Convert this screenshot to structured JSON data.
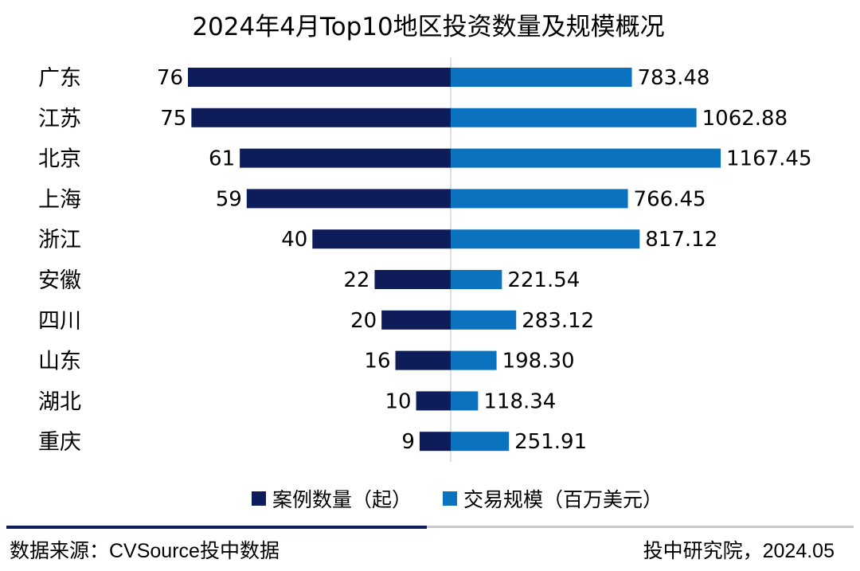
{
  "chart_data": {
    "type": "bar",
    "orientation": "horizontal-diverging",
    "title": "2024年4月Top10地区投资数量及规模概况",
    "categories": [
      "广东",
      "江苏",
      "北京",
      "上海",
      "浙江",
      "安徽",
      "四川",
      "山东",
      "湖北",
      "重庆"
    ],
    "series": [
      {
        "name": "案例数量（起）",
        "color": "#0e1c5a",
        "values": [
          76,
          75,
          61,
          59,
          40,
          22,
          20,
          16,
          10,
          9
        ]
      },
      {
        "name": "交易规模（百万美元）",
        "color": "#0b72bf",
        "values": [
          783.48,
          1062.88,
          1167.45,
          766.45,
          817.12,
          221.54,
          283.12,
          198.3,
          118.34,
          251.91
        ],
        "labels": [
          "783.48",
          "1062.88",
          "1167.45",
          "766.45",
          "817.12",
          "221.54",
          "283.12",
          "198.30",
          "118.34",
          "251.91"
        ]
      }
    ],
    "legend_position": "bottom",
    "grid": false
  },
  "footer": {
    "source": "数据来源：CVSource投中数据",
    "credit": "投中研究院，2024.05"
  }
}
